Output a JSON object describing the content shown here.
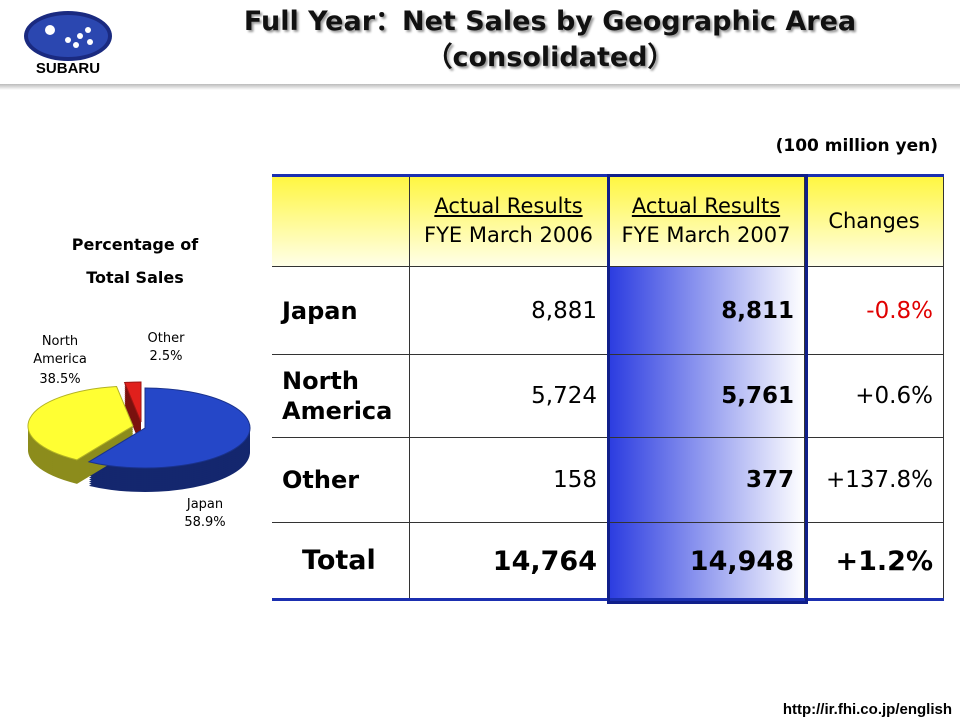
{
  "header": {
    "logo": "SUBARU",
    "title": "Full Year：Net Sales by Geographic Area",
    "subtitle": "（consolidated）"
  },
  "unit": "(100 million yen)",
  "table": {
    "columns": [
      [
        "Actual Results",
        "FYE March 2006"
      ],
      [
        "Actual Results",
        "FYE March 2007"
      ],
      [
        "Changes"
      ]
    ],
    "rows": [
      [
        "Japan",
        "8,881",
        "8,811",
        "-0.8%"
      ],
      [
        "North America",
        "5,724",
        "5,761",
        "+0.6%"
      ],
      [
        "Other",
        "158",
        "377",
        "+137.8%"
      ],
      [
        "Total",
        "14,764",
        "14,948",
        "+1.2%"
      ]
    ]
  },
  "chart_data": {
    "type": "pie",
    "title": "Percentage of Total Sales",
    "categories": [
      "Japan",
      "North America",
      "Other"
    ],
    "values": [
      58.9,
      38.5,
      2.5
    ],
    "value_labels": [
      "58.9%",
      "38.5%",
      "2.5%"
    ],
    "colors": [
      "#2547c8",
      "#ffff33",
      "#e0201c"
    ]
  },
  "footer": {
    "url": "http://ir.fhi.co.jp/english"
  }
}
